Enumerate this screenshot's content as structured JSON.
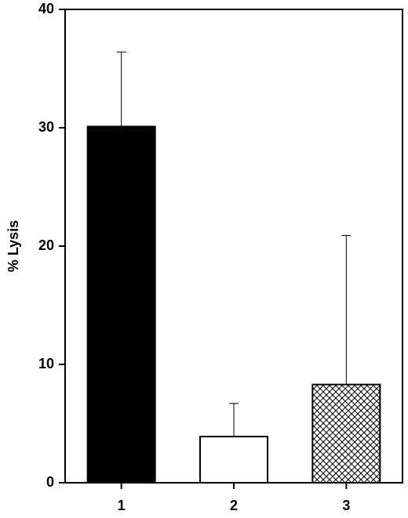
{
  "chart_data": {
    "type": "bar",
    "y_label": "% Lysis",
    "categories": [
      "1",
      "2",
      "3"
    ],
    "values": [
      30.1,
      3.9,
      8.3
    ],
    "errors": [
      6.3,
      2.8,
      12.6
    ],
    "colors": [
      "#000000",
      "#ffffff",
      "#ffffff"
    ],
    "hatch": [
      null,
      null,
      "crosshatch"
    ],
    "ylim": [
      0,
      40
    ],
    "yticks": [
      0,
      10,
      20,
      30,
      40
    ],
    "grid": false
  }
}
